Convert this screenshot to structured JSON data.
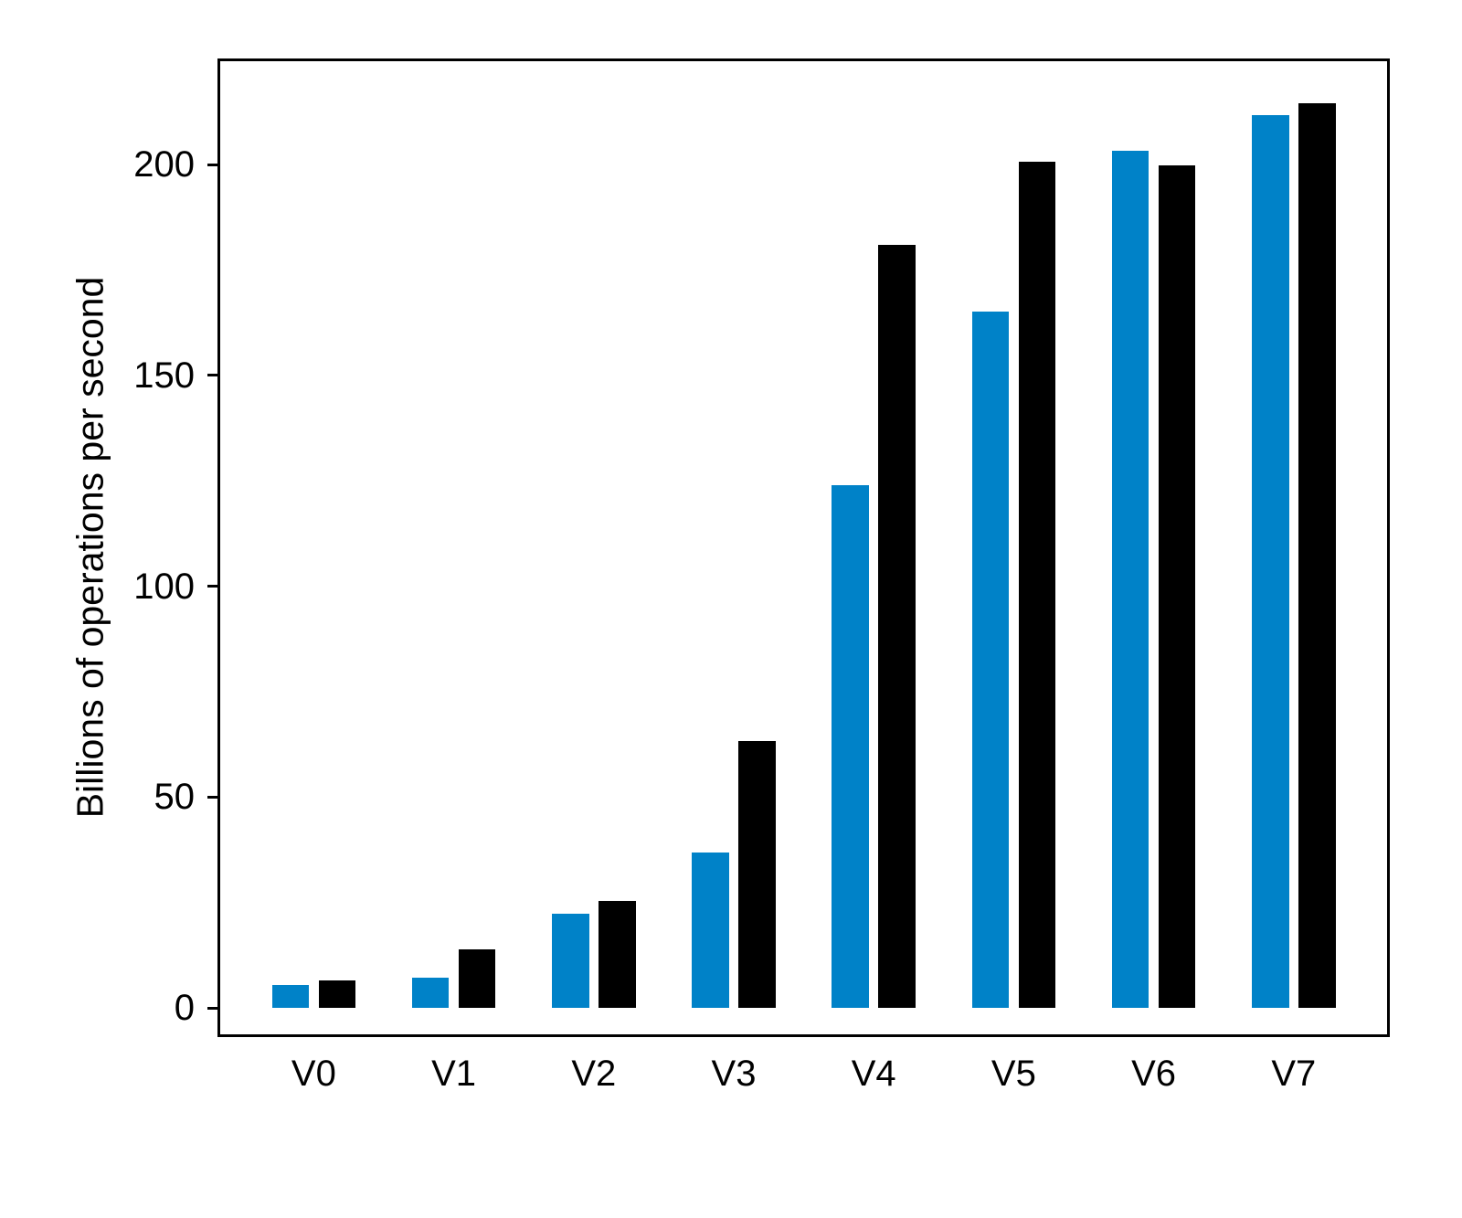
{
  "figure": {
    "background_color": "#ffffff",
    "axis_color": "#000000"
  },
  "chart_data": {
    "type": "bar",
    "categories": [
      "V0",
      "V1",
      "V2",
      "V3",
      "V4",
      "V5",
      "V6",
      "V7"
    ],
    "series": [
      {
        "name": "blue",
        "color": "#0082c8",
        "values": [
          5.4,
          7.2,
          22.3,
          36.9,
          123.9,
          165.1,
          203.3,
          211.7
        ]
      },
      {
        "name": "black",
        "color": "#000000",
        "values": [
          6.5,
          13.9,
          25.4,
          63.3,
          181.0,
          200.7,
          199.8,
          214.5
        ]
      }
    ],
    "title": "",
    "xlabel": "",
    "ylabel": "Billions of operations per second",
    "yticks": [
      0,
      50,
      100,
      150,
      200
    ],
    "ylim": [
      -6.5,
      225.2
    ],
    "grid": false,
    "legend_position": "none"
  }
}
